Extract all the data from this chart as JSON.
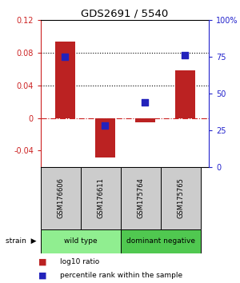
{
  "title": "GDS2691 / 5540",
  "samples": [
    "GSM176606",
    "GSM176611",
    "GSM175764",
    "GSM175765"
  ],
  "log10_ratio": [
    0.093,
    -0.048,
    -0.005,
    0.058
  ],
  "percentile_rank": [
    0.75,
    0.28,
    0.44,
    0.76
  ],
  "groups": [
    {
      "label": "wild type",
      "color": "#90ee90",
      "samples": [
        0,
        1
      ]
    },
    {
      "label": "dominant negative",
      "color": "#50c850",
      "samples": [
        2,
        3
      ]
    }
  ],
  "ylim_left": [
    -0.06,
    0.12
  ],
  "ylim_right": [
    0.0,
    1.0
  ],
  "yticks_left": [
    -0.04,
    0,
    0.04,
    0.08,
    0.12
  ],
  "yticks_right": [
    0.0,
    0.25,
    0.5,
    0.75,
    1.0
  ],
  "ytick_labels_left": [
    "-0.04",
    "0",
    "0.04",
    "0.08",
    "0.12"
  ],
  "ytick_labels_right": [
    "0",
    "25",
    "50",
    "75",
    "100%"
  ],
  "hlines": [
    0.08,
    0.04
  ],
  "bar_color": "#bb2222",
  "dot_color": "#2222bb",
  "bar_width": 0.5,
  "dot_size": 40,
  "left_tick_color": "#cc2222",
  "right_tick_color": "#2222cc",
  "legend_ratio_label": "log10 ratio",
  "legend_rank_label": "percentile rank within the sample",
  "strain_label": "strain",
  "bg_color": "#ffffff",
  "sample_box_color": "#cccccc",
  "sample_box_edge": "#000000",
  "group_box_edge": "#000000"
}
